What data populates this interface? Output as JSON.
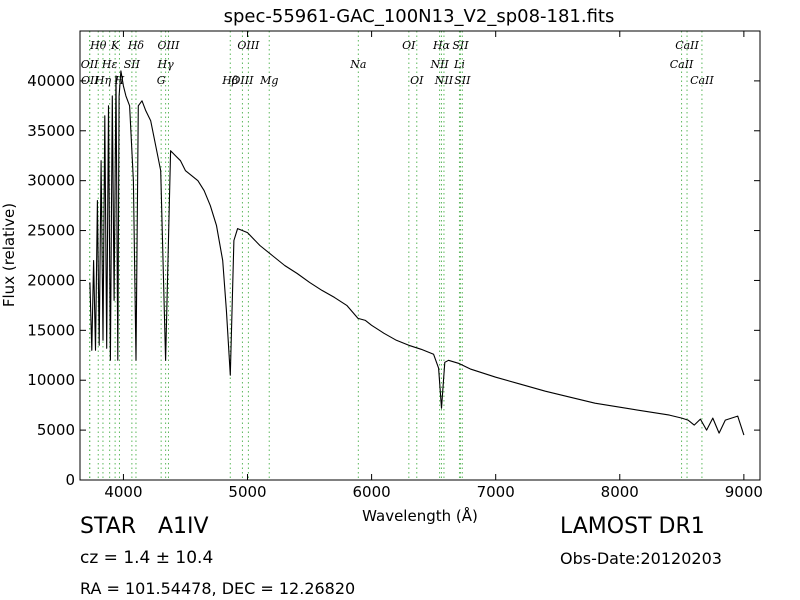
{
  "chart_data": {
    "type": "line",
    "title": "spec-55961-GAC_100N13_V2_sp08-181.fits",
    "xlabel": "Wavelength (Å)",
    "ylabel": "Flux (relative)",
    "xlim": [
      3650,
      9130
    ],
    "ylim": [
      0,
      45000
    ],
    "xticks": [
      4000,
      5000,
      6000,
      7000,
      8000,
      9000
    ],
    "yticks": [
      0,
      5000,
      10000,
      15000,
      20000,
      25000,
      30000,
      35000,
      40000
    ],
    "grid": false,
    "series": [
      {
        "color": "#000000",
        "x": [
          3730,
          3745,
          3760,
          3775,
          3790,
          3805,
          3820,
          3835,
          3850,
          3865,
          3880,
          3895,
          3910,
          3925,
          3940,
          3955,
          3965,
          3980,
          4000,
          4020,
          4050,
          4080,
          4101,
          4120,
          4150,
          4180,
          4220,
          4260,
          4300,
          4340,
          4380,
          4420,
          4460,
          4500,
          4550,
          4600,
          4650,
          4700,
          4750,
          4800,
          4830,
          4861,
          4890,
          4920,
          4960,
          5000,
          5100,
          5200,
          5300,
          5400,
          5500,
          5600,
          5700,
          5800,
          5890,
          5950,
          6000,
          6100,
          6200,
          6300,
          6400,
          6500,
          6540,
          6563,
          6590,
          6620,
          6700,
          6800,
          7000,
          7200,
          7400,
          7600,
          7800,
          8000,
          8200,
          8400,
          8500,
          8550,
          8600,
          8650,
          8700,
          8750,
          8800,
          8850,
          8900,
          8950,
          9000
        ],
        "y": [
          19800,
          13000,
          22000,
          13000,
          28000,
          13500,
          32000,
          14000,
          36500,
          13200,
          37500,
          12000,
          38500,
          18000,
          40500,
          12000,
          38500,
          41000,
          39500,
          38500,
          37500,
          30000,
          12000,
          37500,
          38000,
          37000,
          36000,
          33500,
          31000,
          12000,
          33000,
          32500,
          32000,
          31000,
          30500,
          30000,
          29000,
          27500,
          25500,
          22000,
          17000,
          10500,
          24000,
          25200,
          25000,
          24800,
          23500,
          22500,
          21500,
          20700,
          19800,
          19000,
          18300,
          17500,
          16200,
          16000,
          15500,
          14700,
          14000,
          13500,
          13100,
          12600,
          11200,
          7200,
          11800,
          12000,
          11700,
          11100,
          10300,
          9600,
          8900,
          8300,
          7700,
          7300,
          6900,
          6500,
          6200,
          6000,
          5500,
          6100,
          5000,
          6200,
          4700,
          6000,
          6200,
          6400,
          4500
        ]
      }
    ],
    "line_markers": [
      {
        "label": "Hθ",
        "x": 3797,
        "tier": 1
      },
      {
        "label": "K",
        "x": 3933,
        "tier": 1
      },
      {
        "label": "Hδ",
        "x": 4101,
        "tier": 1
      },
      {
        "label": "OIII",
        "x": 4363,
        "tier": 1
      },
      {
        "label": "OIII",
        "x": 5007,
        "tier": 1
      },
      {
        "label": "OI",
        "x": 6300,
        "tier": 1
      },
      {
        "label": "Hα",
        "x": 6563,
        "tier": 1
      },
      {
        "label": "SII",
        "x": 6716,
        "tier": 1
      },
      {
        "label": "CaII",
        "x": 8542,
        "tier": 1
      },
      {
        "label": "OII",
        "x": 3727,
        "tier": 2
      },
      {
        "label": "Hε",
        "x": 3889,
        "tier": 2
      },
      {
        "label": "SII",
        "x": 4068,
        "tier": 2
      },
      {
        "label": "Hγ",
        "x": 4340,
        "tier": 2
      },
      {
        "label": "Na",
        "x": 5893,
        "tier": 2
      },
      {
        "label": "NII",
        "x": 6548,
        "tier": 2
      },
      {
        "label": "Li",
        "x": 6708,
        "tier": 2
      },
      {
        "label": "CaII",
        "x": 8498,
        "tier": 2
      },
      {
        "label": "OII",
        "x": 3729,
        "tier": 3
      },
      {
        "label": "Hη",
        "x": 3835,
        "tier": 3
      },
      {
        "label": "H",
        "x": 3968,
        "tier": 3
      },
      {
        "label": "G",
        "x": 4304,
        "tier": 3
      },
      {
        "label": "Hβ",
        "x": 4861,
        "tier": 3
      },
      {
        "label": "OIII",
        "x": 4959,
        "tier": 3
      },
      {
        "label": "Mg",
        "x": 5175,
        "tier": 3
      },
      {
        "label": "OI",
        "x": 6364,
        "tier": 3
      },
      {
        "label": "NII",
        "x": 6583,
        "tier": 3
      },
      {
        "label": "SII",
        "x": 6731,
        "tier": 3
      },
      {
        "label": "CaII",
        "x": 8662,
        "tier": 3
      }
    ]
  },
  "info": {
    "object_class": "STAR",
    "subclass": "A1IV",
    "cz": "cz = 1.4 ± 10.4",
    "radec": "RA = 101.54478, DEC = 12.26820",
    "survey": "LAMOST DR1",
    "obs_date": "Obs-Date:20120203"
  },
  "colors": {
    "spectrum": "#000000",
    "marker_line": "#5cb85c",
    "axes": "#000000"
  }
}
